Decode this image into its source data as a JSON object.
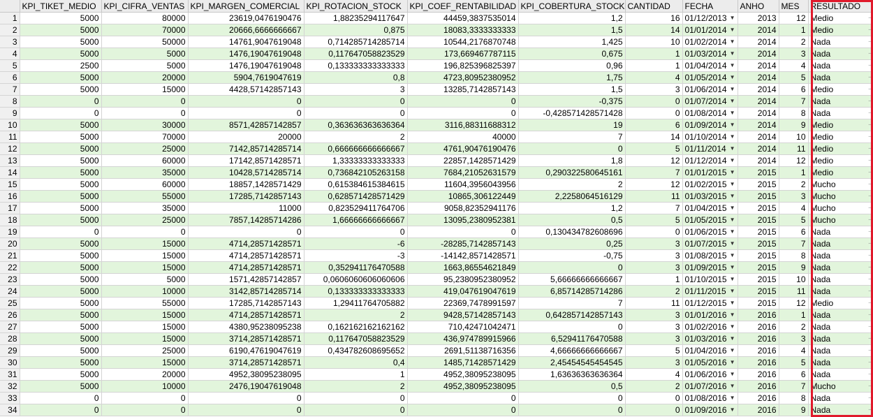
{
  "columns": [
    "KPI_TIKET_MEDIO",
    "KPI_CIFRA_VENTAS",
    "KPI_MARGEN_COMERCIAL",
    "KPI_ROTACION_STOCK",
    "KPI_COEF_RENTABILIDAD",
    "KPI_COBERTURA_STOCK",
    "CANTIDAD",
    "FECHA",
    "ANHO",
    "MES",
    "RESULTADO"
  ],
  "rows": [
    [
      "1",
      "5000",
      "80000",
      "23619,0476190476",
      "1,88235294117647",
      "44459,3837535014",
      "1,2",
      "16",
      "01/12/2013",
      "2013",
      "12",
      "Medio"
    ],
    [
      "2",
      "5000",
      "70000",
      "20666,6666666667",
      "0,875",
      "18083,3333333333",
      "1,5",
      "14",
      "01/01/2014",
      "2014",
      "1",
      "Medio"
    ],
    [
      "3",
      "5000",
      "50000",
      "14761,9047619048",
      "0,714285714285714",
      "10544,2176870748",
      "1,425",
      "10",
      "01/02/2014",
      "2014",
      "2",
      "Nada"
    ],
    [
      "4",
      "5000",
      "5000",
      "1476,19047619048",
      "0,117647058823529",
      "173,669467787115",
      "0,675",
      "1",
      "01/03/2014",
      "2014",
      "3",
      "Nada"
    ],
    [
      "5",
      "2500",
      "5000",
      "1476,19047619048",
      "0,133333333333333",
      "196,825396825397",
      "0,96",
      "1",
      "01/04/2014",
      "2014",
      "4",
      "Nada"
    ],
    [
      "6",
      "5000",
      "20000",
      "5904,7619047619",
      "0,8",
      "4723,80952380952",
      "1,75",
      "4",
      "01/05/2014",
      "2014",
      "5",
      "Nada"
    ],
    [
      "7",
      "5000",
      "15000",
      "4428,57142857143",
      "3",
      "13285,7142857143",
      "1,5",
      "3",
      "01/06/2014",
      "2014",
      "6",
      "Medio"
    ],
    [
      "8",
      "0",
      "0",
      "0",
      "0",
      "0",
      "-0,375",
      "0",
      "01/07/2014",
      "2014",
      "7",
      "Nada"
    ],
    [
      "9",
      "0",
      "0",
      "0",
      "0",
      "0",
      "-0,428571428571428",
      "0",
      "01/08/2014",
      "2014",
      "8",
      "Nada"
    ],
    [
      "10",
      "5000",
      "30000",
      "8571,42857142857",
      "0,363636363636364",
      "3116,88311688312",
      "19",
      "6",
      "01/09/2014",
      "2014",
      "9",
      "Medio"
    ],
    [
      "11",
      "5000",
      "70000",
      "20000",
      "2",
      "40000",
      "7",
      "14",
      "01/10/2014",
      "2014",
      "10",
      "Medio"
    ],
    [
      "12",
      "5000",
      "25000",
      "7142,85714285714",
      "0,666666666666667",
      "4761,90476190476",
      "0",
      "5",
      "01/11/2014",
      "2014",
      "11",
      "Medio"
    ],
    [
      "13",
      "5000",
      "60000",
      "17142,8571428571",
      "1,33333333333333",
      "22857,1428571429",
      "1,8",
      "12",
      "01/12/2014",
      "2014",
      "12",
      "Medio"
    ],
    [
      "14",
      "5000",
      "35000",
      "10428,5714285714",
      "0,736842105263158",
      "7684,21052631579",
      "0,290322580645161",
      "7",
      "01/01/2015",
      "2015",
      "1",
      "Medio"
    ],
    [
      "15",
      "5000",
      "60000",
      "18857,1428571429",
      "0,615384615384615",
      "11604,3956043956",
      "2",
      "12",
      "01/02/2015",
      "2015",
      "2",
      "Mucho"
    ],
    [
      "16",
      "5000",
      "55000",
      "17285,7142857143",
      "0,628571428571429",
      "10865,306122449",
      "2,2258064516129",
      "11",
      "01/03/2015",
      "2015",
      "3",
      "Mucho"
    ],
    [
      "17",
      "5000",
      "35000",
      "11000",
      "0,823529411764706",
      "9058,82352941176",
      "1,2",
      "7",
      "01/04/2015",
      "2015",
      "4",
      "Mucho"
    ],
    [
      "18",
      "5000",
      "25000",
      "7857,14285714286",
      "1,66666666666667",
      "13095,2380952381",
      "0,5",
      "5",
      "01/05/2015",
      "2015",
      "5",
      "Mucho"
    ],
    [
      "19",
      "0",
      "0",
      "0",
      "0",
      "0",
      "0,130434782608696",
      "0",
      "01/06/2015",
      "2015",
      "6",
      "Nada"
    ],
    [
      "20",
      "5000",
      "15000",
      "4714,28571428571",
      "-6",
      "-28285,7142857143",
      "0,25",
      "3",
      "01/07/2015",
      "2015",
      "7",
      "Nada"
    ],
    [
      "21",
      "5000",
      "15000",
      "4714,28571428571",
      "-3",
      "-14142,8571428571",
      "-0,75",
      "3",
      "01/08/2015",
      "2015",
      "8",
      "Nada"
    ],
    [
      "22",
      "5000",
      "15000",
      "4714,28571428571",
      "0,352941176470588",
      "1663,86554621849",
      "0",
      "3",
      "01/09/2015",
      "2015",
      "9",
      "Nada"
    ],
    [
      "23",
      "5000",
      "5000",
      "1571,42857142857",
      "0,0606060606060606",
      "95,2380952380952",
      "5,66666666666667",
      "1",
      "01/10/2015",
      "2015",
      "10",
      "Nada"
    ],
    [
      "24",
      "5000",
      "10000",
      "3142,85714285714",
      "0,133333333333333",
      "419,047619047619",
      "6,85714285714286",
      "2",
      "01/11/2015",
      "2015",
      "11",
      "Nada"
    ],
    [
      "25",
      "5000",
      "55000",
      "17285,7142857143",
      "1,29411764705882",
      "22369,7478991597",
      "7",
      "11",
      "01/12/2015",
      "2015",
      "12",
      "Medio"
    ],
    [
      "26",
      "5000",
      "15000",
      "4714,28571428571",
      "2",
      "9428,57142857143",
      "0,642857142857143",
      "3",
      "01/01/2016",
      "2016",
      "1",
      "Nada"
    ],
    [
      "27",
      "5000",
      "15000",
      "4380,95238095238",
      "0,162162162162162",
      "710,42471042471",
      "0",
      "3",
      "01/02/2016",
      "2016",
      "2",
      "Nada"
    ],
    [
      "28",
      "5000",
      "15000",
      "3714,28571428571",
      "0,117647058823529",
      "436,974789915966",
      "6,52941176470588",
      "3",
      "01/03/2016",
      "2016",
      "3",
      "Nada"
    ],
    [
      "29",
      "5000",
      "25000",
      "6190,47619047619",
      "0,434782608695652",
      "2691,51138716356",
      "4,66666666666667",
      "5",
      "01/04/2016",
      "2016",
      "4",
      "Nada"
    ],
    [
      "30",
      "5000",
      "15000",
      "3714,28571428571",
      "0,4",
      "1485,71428571429",
      "2,45454545454545",
      "3",
      "01/05/2016",
      "2016",
      "5",
      "Nada"
    ],
    [
      "31",
      "5000",
      "20000",
      "4952,38095238095",
      "1",
      "4952,38095238095",
      "1,63636363636364",
      "4",
      "01/06/2016",
      "2016",
      "6",
      "Nada"
    ],
    [
      "32",
      "5000",
      "10000",
      "2476,19047619048",
      "2",
      "4952,38095238095",
      "0,5",
      "2",
      "01/07/2016",
      "2016",
      "7",
      "Mucho"
    ],
    [
      "33",
      "0",
      "0",
      "0",
      "0",
      "0",
      "0",
      "0",
      "01/08/2016",
      "2016",
      "8",
      "Nada"
    ],
    [
      "34",
      "0",
      "0",
      "0",
      "0",
      "0",
      "0",
      "0",
      "01/09/2016",
      "2016",
      "9",
      "Nada"
    ]
  ]
}
